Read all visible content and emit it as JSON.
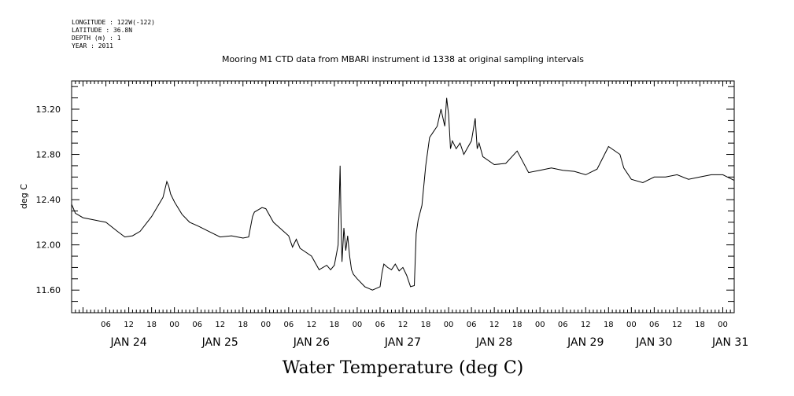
{
  "header": {
    "longitude": "LONGITUDE : 122W(-122)",
    "latitude": "LATITUDE : 36.8N",
    "depth": "DEPTH (m) : 1",
    "year": "YEAR : 2011"
  },
  "chart_data": {
    "type": "line",
    "title": "Mooring M1 CTD data from MBARI instrument id 1338 at original sampling intervals",
    "xlabel": "Water Temperature (deg C)",
    "ylabel": "deg C",
    "ylim": [
      11.4,
      13.45
    ],
    "xlim": [
      "2011-01-23T21:00",
      "2011-01-31T03:00"
    ],
    "y_ticks": [
      "11.60",
      "12.00",
      "12.40",
      "12.80",
      "13.20"
    ],
    "hour_ticks": [
      "06",
      "12",
      "18",
      "00",
      "06",
      "12",
      "18",
      "00",
      "06",
      "12",
      "18",
      "00",
      "06",
      "12",
      "18",
      "00",
      "06",
      "12",
      "18",
      "00",
      "06",
      "12",
      "18",
      "00",
      "06",
      "12",
      "18",
      "00"
    ],
    "day_labels": [
      "JAN 24",
      "JAN 25",
      "JAN 26",
      "JAN 27",
      "JAN 28",
      "JAN 29",
      "JAN 30",
      "JAN 31"
    ],
    "grid": false,
    "legend": "none",
    "series": [
      {
        "color": "#000000",
        "x": [
          "2011-01-23T21:00",
          "2011-01-23T22:00",
          "2011-01-24T00:00",
          "2011-01-24T03:00",
          "2011-01-24T06:00",
          "2011-01-24T09:00",
          "2011-01-24T11:00",
          "2011-01-24T13:00",
          "2011-01-24T15:00",
          "2011-01-24T18:00",
          "2011-01-24T21:00",
          "2011-01-24T22:00",
          "2011-01-24T22:30",
          "2011-01-24T23:00",
          "2011-01-25T00:00",
          "2011-01-25T02:00",
          "2011-01-25T04:00",
          "2011-01-25T06:00",
          "2011-01-25T09:00",
          "2011-01-25T12:00",
          "2011-01-25T15:00",
          "2011-01-25T18:00",
          "2011-01-25T19:30",
          "2011-01-25T20:30",
          "2011-01-25T21:00",
          "2011-01-25T23:00",
          "2011-01-26T00:00",
          "2011-01-26T02:00",
          "2011-01-26T04:00",
          "2011-01-26T06:00",
          "2011-01-26T07:00",
          "2011-01-26T08:00",
          "2011-01-26T09:00",
          "2011-01-26T12:00",
          "2011-01-26T14:00",
          "2011-01-26T16:00",
          "2011-01-26T17:00",
          "2011-01-26T18:00",
          "2011-01-26T19:00",
          "2011-01-26T19:30",
          "2011-01-26T19:45",
          "2011-01-26T20:00",
          "2011-01-26T20:30",
          "2011-01-26T21:00",
          "2011-01-26T21:30",
          "2011-01-26T22:00",
          "2011-01-26T22:30",
          "2011-01-26T23:00",
          "2011-01-27T00:00",
          "2011-01-27T02:00",
          "2011-01-27T04:00",
          "2011-01-27T06:00",
          "2011-01-27T06:30",
          "2011-01-27T07:00",
          "2011-01-27T08:00",
          "2011-01-27T09:00",
          "2011-01-27T10:00",
          "2011-01-27T11:00",
          "2011-01-27T12:00",
          "2011-01-27T13:00",
          "2011-01-27T14:00",
          "2011-01-27T15:00",
          "2011-01-27T15:30",
          "2011-01-27T16:00",
          "2011-01-27T17:00",
          "2011-01-27T18:00",
          "2011-01-27T19:00",
          "2011-01-27T20:00",
          "2011-01-27T21:00",
          "2011-01-27T22:00",
          "2011-01-27T23:00",
          "2011-01-27T23:30",
          "2011-01-28T00:00",
          "2011-01-28T00:30",
          "2011-01-28T01:00",
          "2011-01-28T02:00",
          "2011-01-28T03:00",
          "2011-01-28T04:00",
          "2011-01-28T06:00",
          "2011-01-28T07:00",
          "2011-01-28T07:30",
          "2011-01-28T08:00",
          "2011-01-28T09:00",
          "2011-01-28T12:00",
          "2011-01-28T15:00",
          "2011-01-28T18:00",
          "2011-01-28T21:00",
          "2011-01-29T00:00",
          "2011-01-29T03:00",
          "2011-01-29T06:00",
          "2011-01-29T09:00",
          "2011-01-29T12:00",
          "2011-01-29T15:00",
          "2011-01-29T18:00",
          "2011-01-29T21:00",
          "2011-01-29T22:00",
          "2011-01-30T00:00",
          "2011-01-30T03:00",
          "2011-01-30T06:00",
          "2011-01-30T09:00",
          "2011-01-30T12:00",
          "2011-01-30T15:00",
          "2011-01-30T18:00",
          "2011-01-30T21:00",
          "2011-01-31T00:00",
          "2011-01-31T03:00"
        ],
        "y": [
          12.36,
          12.28,
          12.24,
          12.22,
          12.2,
          12.12,
          12.07,
          12.08,
          12.12,
          12.25,
          12.42,
          12.56,
          12.52,
          12.45,
          12.38,
          12.27,
          12.2,
          12.17,
          12.12,
          12.07,
          12.08,
          12.06,
          12.07,
          12.25,
          12.29,
          12.33,
          12.32,
          12.2,
          12.14,
          12.08,
          11.98,
          12.05,
          11.97,
          11.9,
          11.78,
          11.82,
          11.78,
          11.82,
          12.0,
          12.7,
          12.2,
          11.85,
          12.15,
          11.95,
          12.08,
          11.9,
          11.78,
          11.74,
          11.7,
          11.63,
          11.6,
          11.63,
          11.75,
          11.83,
          11.8,
          11.78,
          11.83,
          11.77,
          11.8,
          11.73,
          11.63,
          11.64,
          12.1,
          12.22,
          12.35,
          12.7,
          12.95,
          13.0,
          13.05,
          13.2,
          13.05,
          13.3,
          13.15,
          12.85,
          12.92,
          12.85,
          12.9,
          12.8,
          12.92,
          13.12,
          12.85,
          12.9,
          12.78,
          12.71,
          12.72,
          12.83,
          12.64,
          12.66,
          12.68,
          12.66,
          12.65,
          12.62,
          12.67,
          12.87,
          12.8,
          12.68,
          12.58,
          12.55,
          12.6,
          12.6,
          12.62,
          12.58,
          12.6,
          12.62,
          12.62,
          12.57
        ]
      }
    ]
  }
}
